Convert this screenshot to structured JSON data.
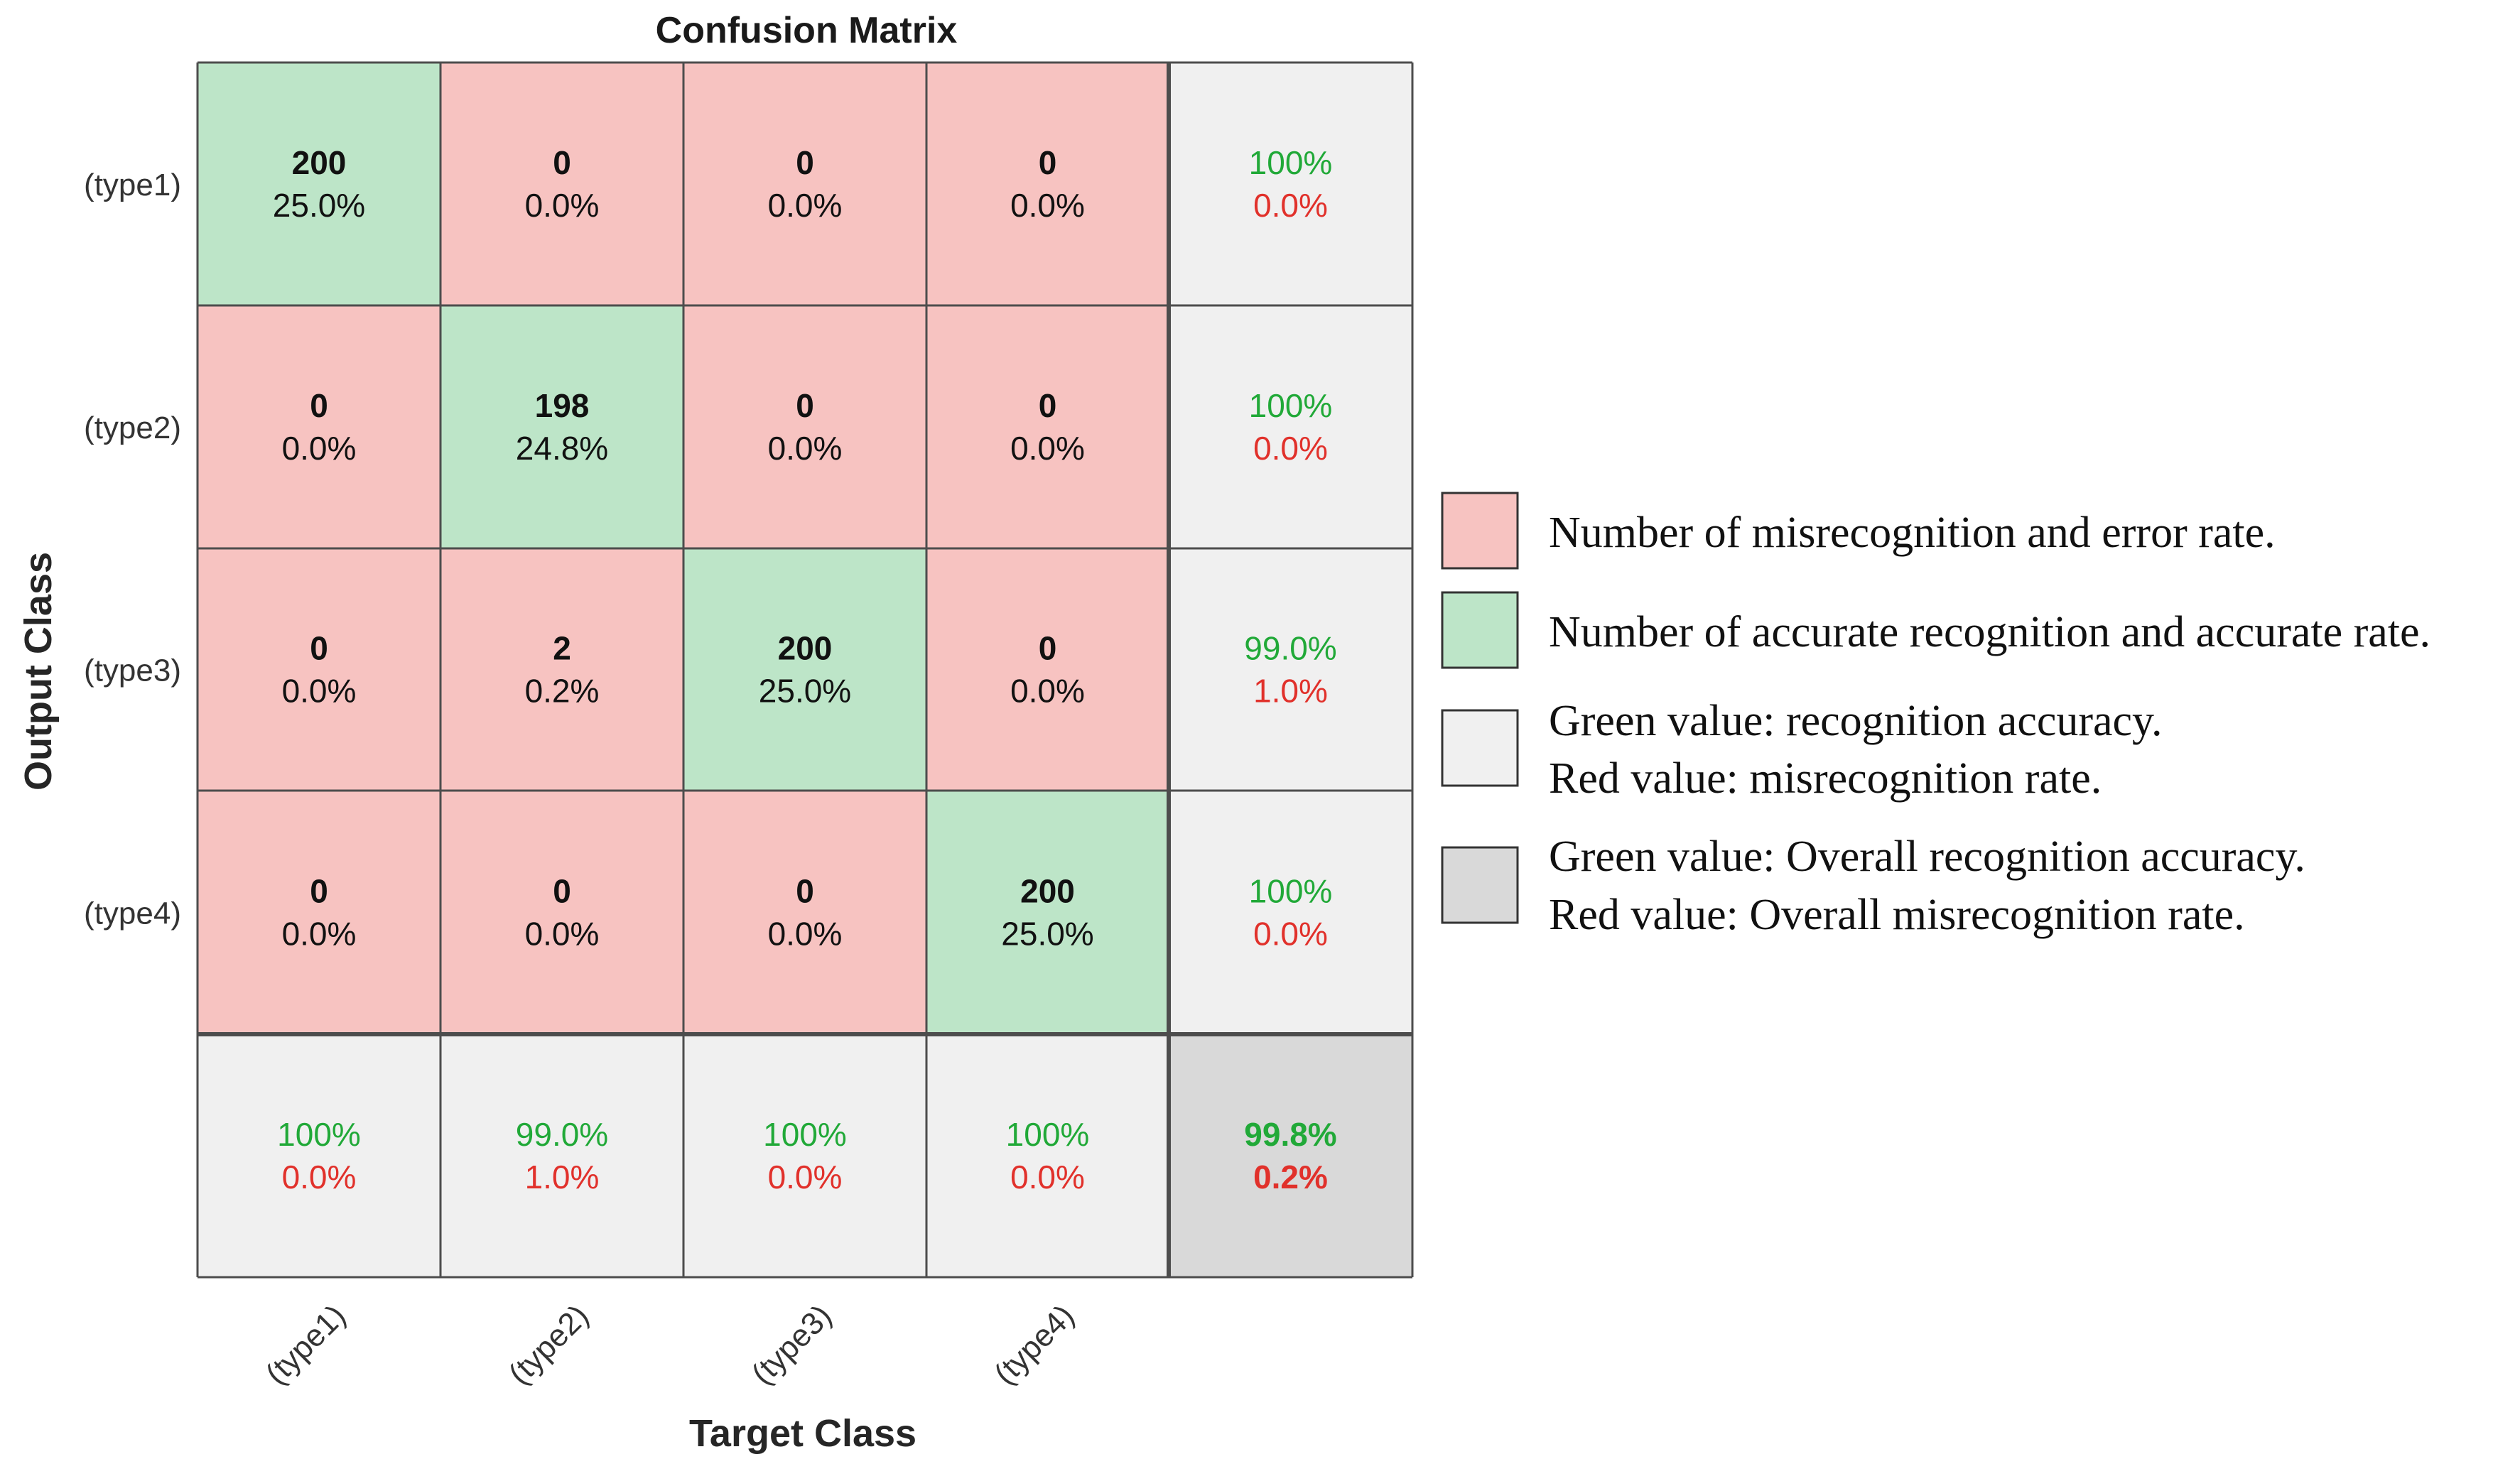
{
  "colors": {
    "diag_fill": "#bde5c8",
    "off_fill": "#f7c3c1",
    "summary_fill": "#f0f0f0",
    "overall_fill": "#d9d9d9",
    "green_text": "#21a938",
    "red_text": "#e1312b",
    "grid_line": "#4d4d4d"
  },
  "chart_data": {
    "type": "heatmap",
    "title": "Confusion Matrix",
    "xlabel": "Target Class",
    "ylabel": "Output Class",
    "classes": [
      "(type1)",
      "(type2)",
      "(type3)",
      "(type4)"
    ],
    "matrix": [
      [
        200,
        0,
        0,
        0
      ],
      [
        0,
        198,
        0,
        0
      ],
      [
        0,
        2,
        200,
        0
      ],
      [
        0,
        0,
        0,
        200
      ]
    ],
    "cell_percents": [
      [
        "25.0%",
        "0.0%",
        "0.0%",
        "0.0%"
      ],
      [
        "0.0%",
        "24.8%",
        "0.0%",
        "0.0%"
      ],
      [
        "0.0%",
        "0.2%",
        "25.0%",
        "0.0%"
      ],
      [
        "0.0%",
        "0.0%",
        "0.0%",
        "25.0%"
      ]
    ],
    "row_summary": [
      {
        "correct": "100%",
        "error": "0.0%"
      },
      {
        "correct": "100%",
        "error": "0.0%"
      },
      {
        "correct": "99.0%",
        "error": "1.0%"
      },
      {
        "correct": "100%",
        "error": "0.0%"
      }
    ],
    "col_summary": [
      {
        "correct": "100%",
        "error": "0.0%"
      },
      {
        "correct": "99.0%",
        "error": "1.0%"
      },
      {
        "correct": "100%",
        "error": "0.0%"
      },
      {
        "correct": "100%",
        "error": "0.0%"
      }
    ],
    "overall": {
      "correct": "99.8%",
      "error": "0.2%"
    }
  },
  "legend": [
    {
      "swatch": "off",
      "lines": [
        "Number of misrecognition and error rate."
      ]
    },
    {
      "swatch": "diag",
      "lines": [
        "Number of accurate recognition and accurate rate."
      ]
    },
    {
      "swatch": "summary",
      "lines": [
        "Green value: recognition accuracy.",
        "Red value: misrecognition rate."
      ]
    },
    {
      "swatch": "overall",
      "lines": [
        "Green value: Overall recognition accuracy.",
        "Red value: Overall misrecognition rate."
      ]
    }
  ]
}
